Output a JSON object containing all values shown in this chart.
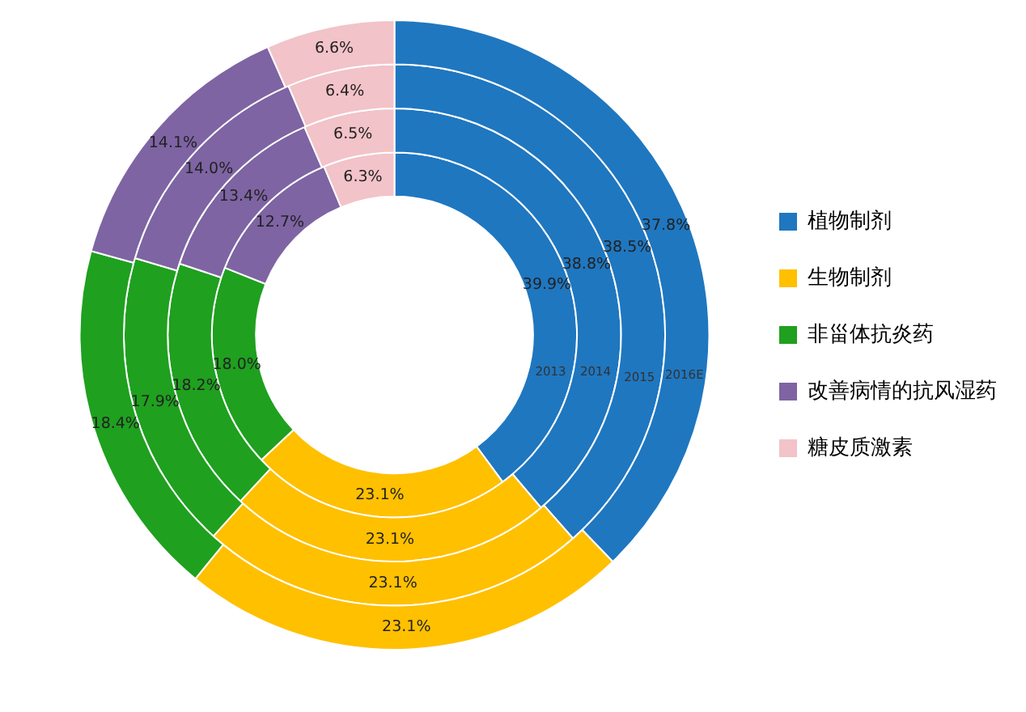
{
  "chart_data": {
    "type": "donut",
    "categories": [
      "植物制剂",
      "生物制剂",
      "非甾体抗炎药",
      "改善病情的抗风湿药",
      "糖皮质激素"
    ],
    "colors": [
      "#1f77c0",
      "#ffc000",
      "#1fa01f",
      "#7e64a3",
      "#f2c3c8"
    ],
    "series": [
      {
        "name": "2013",
        "values": [
          39.9,
          23.1,
          18.0,
          12.7,
          6.3
        ],
        "value_labels": [
          "39.9%",
          "23.1%",
          "18.0%",
          "12.7%",
          "6.3%"
        ]
      },
      {
        "name": "2014",
        "values": [
          38.8,
          23.1,
          18.2,
          13.4,
          6.5
        ],
        "value_labels": [
          "38.8%",
          "23.1%",
          "18.2%",
          "13.4%",
          "6.5%"
        ]
      },
      {
        "name": "2015",
        "values": [
          38.5,
          23.1,
          17.9,
          14.0,
          6.4
        ],
        "value_labels": [
          "38.5%",
          "23.1%",
          "17.9%",
          "14.0%",
          "6.4%"
        ]
      },
      {
        "name": "2016E",
        "values": [
          37.8,
          23.1,
          18.4,
          14.1,
          6.6
        ],
        "value_labels": [
          "37.8%",
          "23.1%",
          "18.4%",
          "14.1%",
          "6.6%"
        ]
      }
    ],
    "legend": "right"
  }
}
